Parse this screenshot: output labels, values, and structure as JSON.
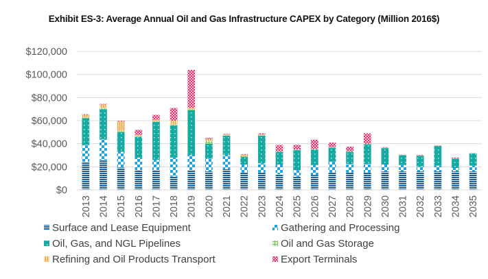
{
  "chart_data": {
    "type": "bar",
    "stacked": true,
    "title": "Exhibit ES-3: Average Annual Oil and Gas Infrastructure CAPEX by Category (Million 2016$)",
    "xlabel": "",
    "ylabel": "",
    "ylim": [
      0,
      120000
    ],
    "yticks": [
      0,
      20000,
      40000,
      60000,
      80000,
      100000,
      120000
    ],
    "ytick_labels": [
      "$0",
      "$20,000",
      "$40,000",
      "$60,000",
      "$80,000",
      "$100,000",
      "$120,000"
    ],
    "grid": true,
    "legend_position": "bottom",
    "categories": [
      "2013",
      "2014",
      "2015",
      "2016",
      "2017",
      "2018",
      "2019",
      "2020",
      "2021",
      "2022",
      "2023",
      "2024",
      "2025",
      "2026",
      "2027",
      "2028",
      "2029",
      "2030",
      "2031",
      "2032",
      "2033",
      "2034",
      "2035"
    ],
    "series": [
      {
        "name": "Surface and Lease Equipment",
        "color": "#1f5f99",
        "pattern": "hlines",
        "values": [
          24500,
          26000,
          19500,
          17000,
          17000,
          11500,
          17000,
          16000,
          18000,
          15000,
          15000,
          13700,
          11500,
          13000,
          15000,
          15000,
          15000,
          16000,
          16000,
          16000,
          16000,
          16000,
          16000
        ]
      },
      {
        "name": "Gathering and Processing",
        "color": "#1ca3e0",
        "pattern": "checker",
        "values": [
          14500,
          18000,
          13500,
          11000,
          9000,
          16500,
          13000,
          11000,
          12000,
          7000,
          8000,
          8300,
          5500,
          8500,
          9500,
          7500,
          7500,
          6000,
          5500,
          4000,
          5000,
          3000,
          5000
        ]
      },
      {
        "name": "Oil, Gas, and NGL Pipelines",
        "color": "#17aaa2",
        "pattern": "dots",
        "values": [
          23000,
          26000,
          17000,
          18000,
          33000,
          28000,
          39000,
          13000,
          17000,
          6500,
          24000,
          11000,
          17500,
          13500,
          12000,
          10500,
          17000,
          14000,
          8500,
          9500,
          17000,
          8000,
          10500
        ]
      },
      {
        "name": "Oil and Gas Storage",
        "color": "#7cc15a",
        "pattern": "grid",
        "values": [
          1000,
          1000,
          1000,
          500,
          500,
          500,
          1000,
          2500,
          500,
          500,
          500,
          300,
          300,
          300,
          300,
          300,
          300,
          300,
          200,
          200,
          200,
          200,
          200
        ]
      },
      {
        "name": "Refining and Oil Products Transport",
        "color": "#f0a030",
        "pattern": "vlines",
        "values": [
          2000,
          3000,
          8500,
          1100,
          1200,
          3500,
          1000,
          1500,
          500,
          1500,
          500,
          200,
          200,
          200,
          200,
          200,
          200,
          200,
          100,
          100,
          100,
          100,
          100
        ]
      },
      {
        "name": "Export Terminals",
        "color": "#e0306e",
        "pattern": "diamonds",
        "values": [
          500,
          500,
          500,
          4400,
          4300,
          11000,
          33000,
          1000,
          500,
          500,
          1000,
          5500,
          4000,
          8000,
          4000,
          4000,
          9000,
          500,
          200,
          500,
          200,
          700,
          200
        ]
      }
    ]
  }
}
